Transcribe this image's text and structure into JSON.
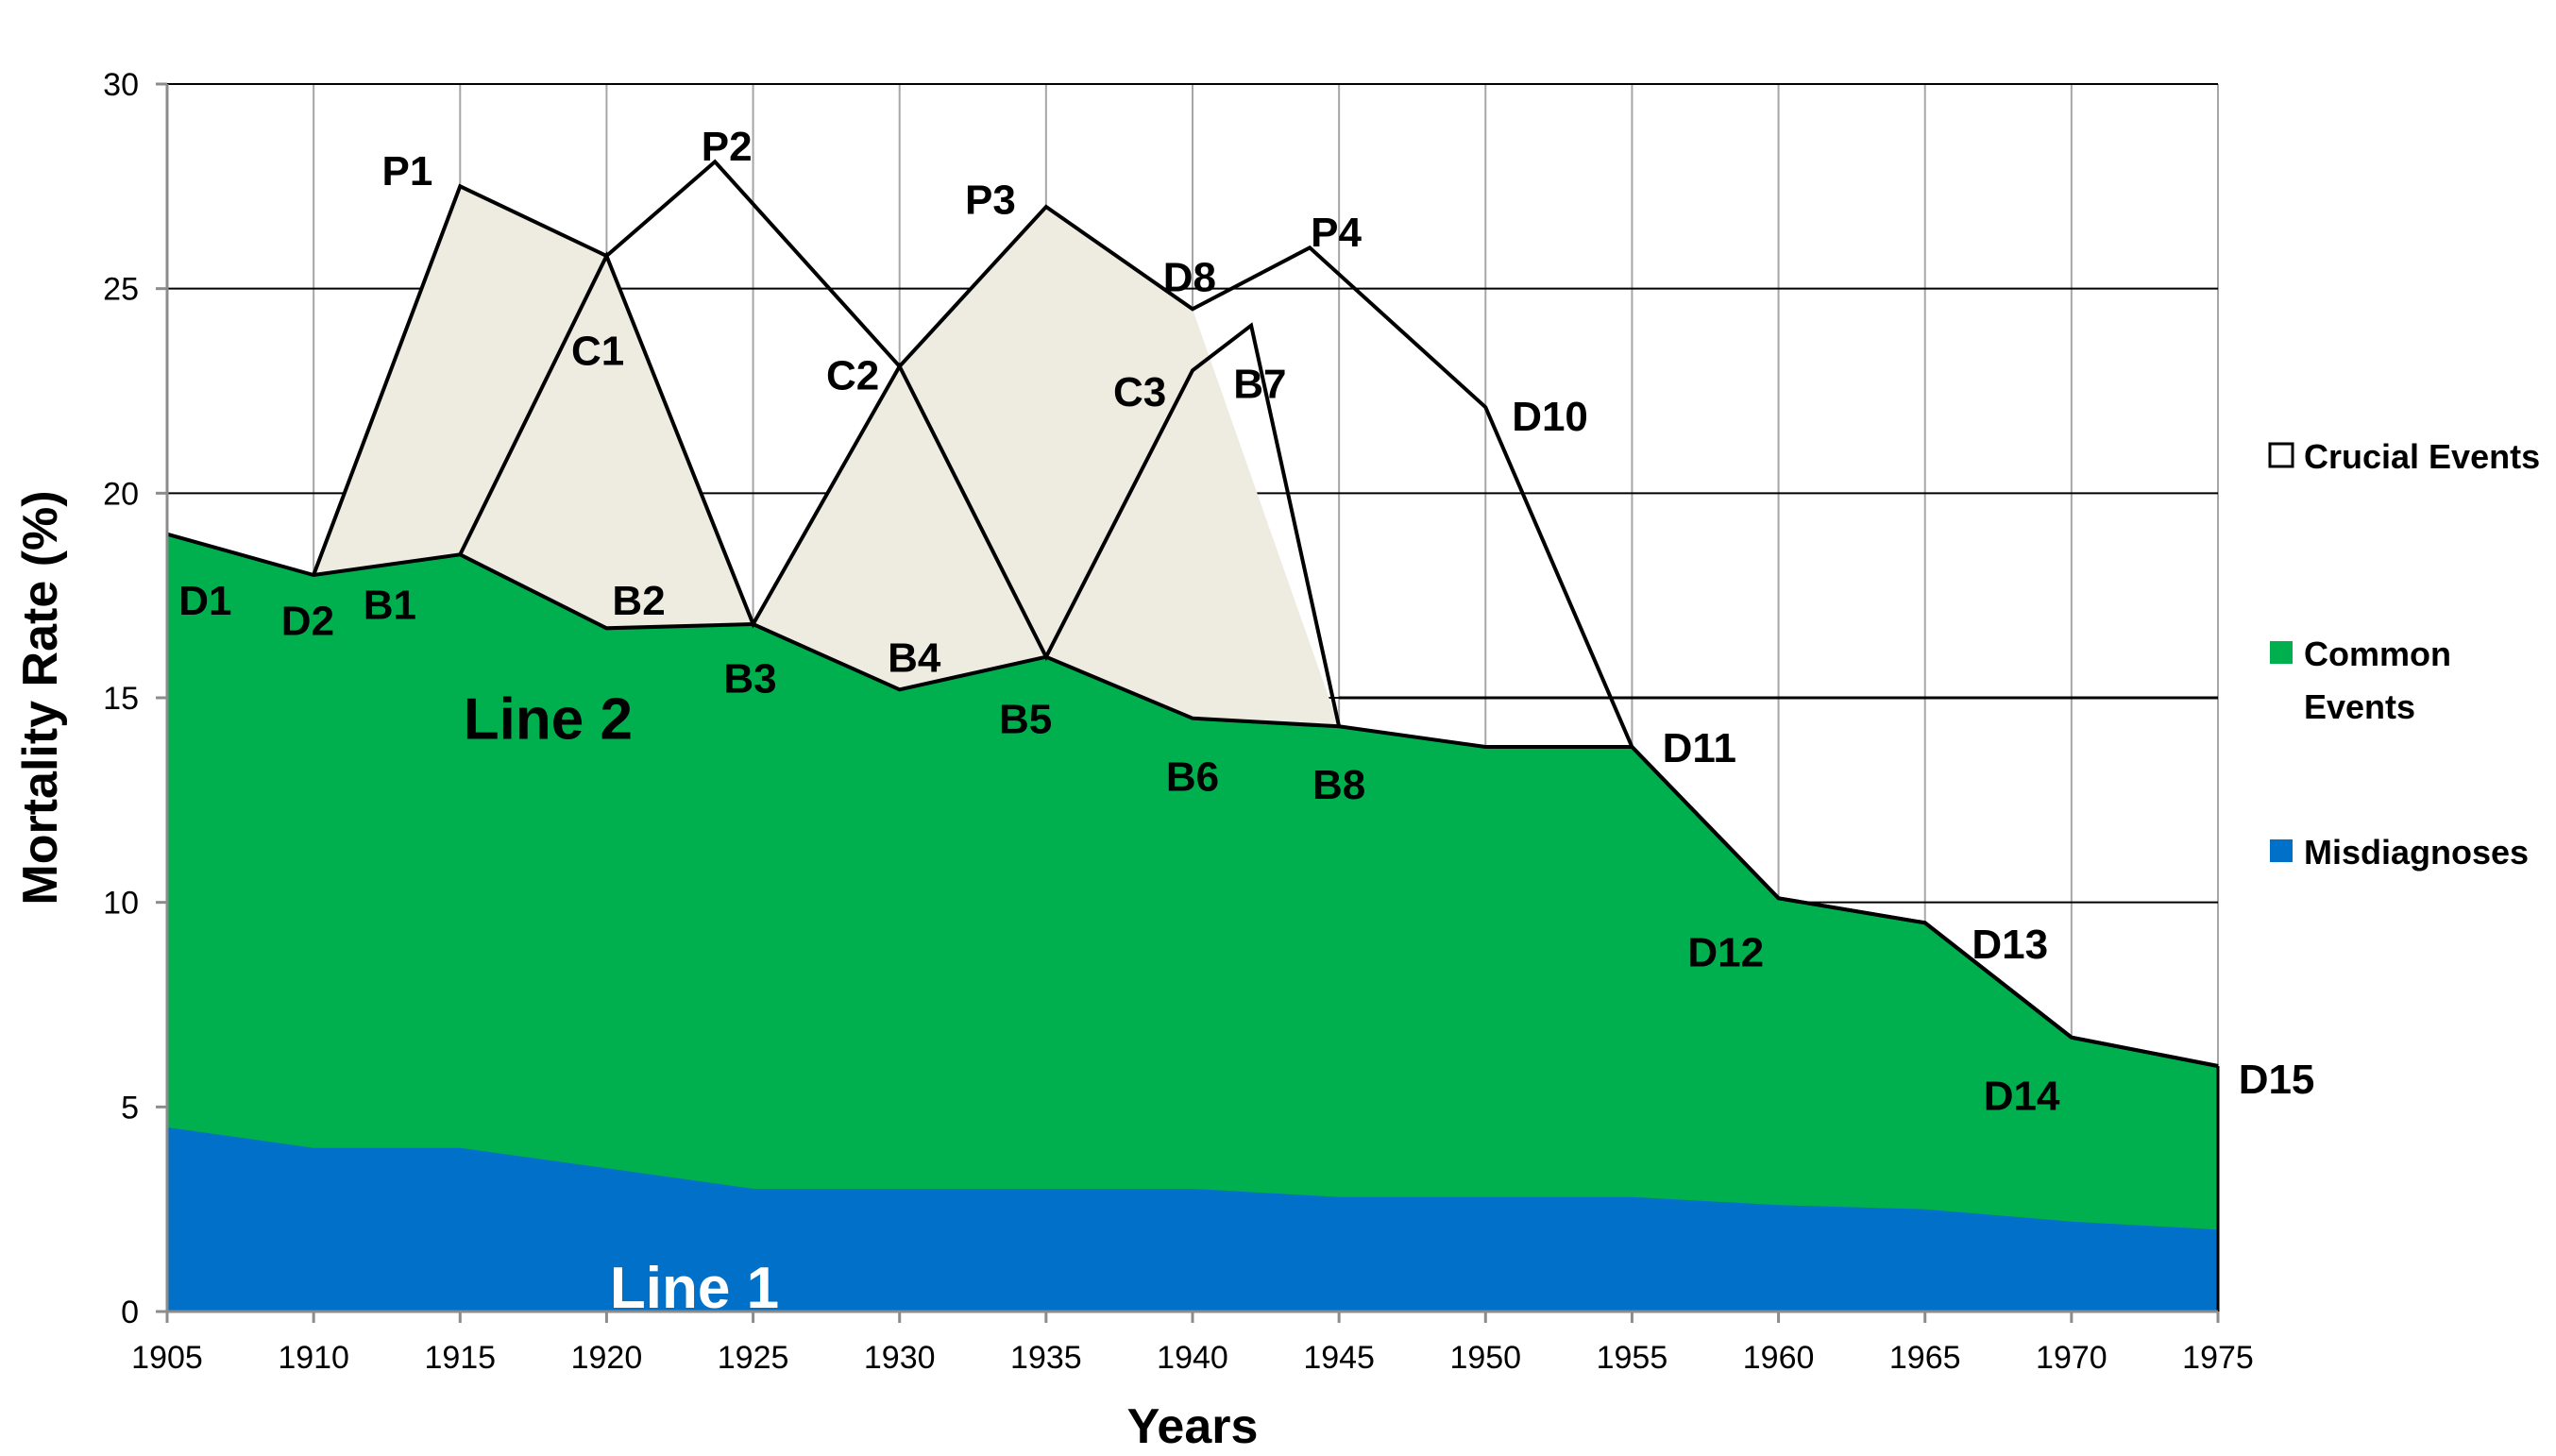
{
  "chart_data": {
    "type": "area",
    "title": "",
    "xlabel": "Years",
    "ylabel": "Mortality Rate (%)",
    "xlim": [
      1905,
      1975
    ],
    "ylim": [
      0,
      30
    ],
    "x_ticks": [
      1905,
      1910,
      1915,
      1920,
      1925,
      1930,
      1935,
      1940,
      1945,
      1950,
      1955,
      1960,
      1965,
      1970,
      1975
    ],
    "y_ticks": [
      0,
      5,
      10,
      15,
      20,
      25,
      30
    ],
    "grid": true,
    "legend": {
      "position": "right",
      "entries": [
        {
          "label": "Crucial Events",
          "color": "#ffffff"
        },
        {
          "label": "Common Events",
          "color": "#00b04f"
        },
        {
          "label": "Misdiagnoses",
          "color": "#0070c8"
        }
      ]
    },
    "series": [
      {
        "name": "Misdiagnoses",
        "color": "#0070c8",
        "points": [
          [
            1905,
            4.5
          ],
          [
            1910,
            4.0
          ],
          [
            1915,
            4.0
          ],
          [
            1920,
            3.5
          ],
          [
            1925,
            3.0
          ],
          [
            1930,
            3.0
          ],
          [
            1935,
            3.0
          ],
          [
            1940,
            3.0
          ],
          [
            1945,
            2.8
          ],
          [
            1950,
            2.8
          ],
          [
            1955,
            2.8
          ],
          [
            1960,
            2.6
          ],
          [
            1965,
            2.5
          ],
          [
            1970,
            2.2
          ],
          [
            1975,
            2.0
          ]
        ]
      },
      {
        "name": "Common Events",
        "color": "#00b04f",
        "points": [
          [
            1905,
            19.0
          ],
          [
            1910,
            18.0
          ],
          [
            1915,
            18.5
          ],
          [
            1920,
            16.7
          ],
          [
            1925,
            16.8
          ],
          [
            1930,
            15.2
          ],
          [
            1935,
            16.0
          ],
          [
            1940,
            14.5
          ],
          [
            1945,
            14.3
          ],
          [
            1950,
            13.8
          ],
          [
            1955,
            13.8
          ],
          [
            1960,
            10.1
          ],
          [
            1965,
            9.5
          ],
          [
            1970,
            6.7
          ],
          [
            1975,
            6.0
          ]
        ]
      },
      {
        "name": "Crucial Events",
        "color": "#eeece1",
        "regions": [
          [
            [
              1910,
              18.0
            ],
            [
              1915,
              27.5
            ],
            [
              1920,
              25.8
            ],
            [
              1925,
              16.8
            ],
            [
              1920,
              16.7
            ],
            [
              1915,
              18.5
            ]
          ],
          [
            [
              1925,
              16.8
            ],
            [
              1930,
              23.1
            ],
            [
              1935,
              16.0
            ],
            [
              1930,
              15.2
            ]
          ],
          [
            [
              1930,
              23.1
            ],
            [
              1935,
              27.0
            ],
            [
              1940,
              24.5
            ],
            [
              1945,
              14.3
            ],
            [
              1940,
              14.5
            ],
            [
              1935,
              16.0
            ]
          ]
        ]
      }
    ],
    "outline": {
      "upper": [
        [
          1910,
          18.0
        ],
        [
          1915,
          27.5
        ],
        [
          1920,
          25.8
        ],
        [
          1923.7,
          28.1
        ],
        [
          1930,
          23.1
        ],
        [
          1935,
          27.0
        ],
        [
          1940,
          24.5
        ],
        [
          1944,
          26.0
        ],
        [
          1950,
          22.1
        ],
        [
          1955,
          13.8
        ]
      ],
      "inner": [
        [
          1915,
          18.5
        ],
        [
          1920,
          25.8
        ],
        [
          1925,
          16.8
        ],
        [
          1930,
          23.1
        ],
        [
          1935,
          16.0
        ],
        [
          1940,
          23.0
        ],
        [
          1942,
          24.1
        ],
        [
          1945,
          14.3
        ]
      ],
      "crucial_plateau": [
        [
          1945,
          15.0
        ],
        [
          1975,
          15.0
        ]
      ],
      "tail": [
        [
          1955,
          13.8
        ],
        [
          1960,
          10.1
        ],
        [
          1965,
          9.5
        ],
        [
          1970,
          6.7
        ],
        [
          1975,
          6.0
        ]
      ]
    },
    "point_labels": [
      {
        "text": "D1",
        "x": 1906.3,
        "y": 17.4
      },
      {
        "text": "D2",
        "x": 1909.8,
        "y": 16.9
      },
      {
        "text": "B1",
        "x": 1912.6,
        "y": 17.3
      },
      {
        "text": "P1",
        "x": 1913.2,
        "y": 27.9
      },
      {
        "text": "C1",
        "x": 1919.7,
        "y": 23.5
      },
      {
        "text": "B2",
        "x": 1921.1,
        "y": 17.4
      },
      {
        "text": "P2",
        "x": 1924.1,
        "y": 28.5
      },
      {
        "text": "B3",
        "x": 1924.9,
        "y": 15.5
      },
      {
        "text": "C2",
        "x": 1928.4,
        "y": 22.9
      },
      {
        "text": "B4",
        "x": 1930.5,
        "y": 16.0
      },
      {
        "text": "P3",
        "x": 1933.1,
        "y": 27.2
      },
      {
        "text": "B5",
        "x": 1934.3,
        "y": 14.5
      },
      {
        "text": "C3",
        "x": 1938.2,
        "y": 22.5
      },
      {
        "text": "D8",
        "x": 1939.9,
        "y": 25.3
      },
      {
        "text": "B6",
        "x": 1940.0,
        "y": 13.1
      },
      {
        "text": "B7",
        "x": 1942.3,
        "y": 22.7
      },
      {
        "text": "P4",
        "x": 1944.9,
        "y": 26.4
      },
      {
        "text": "B8",
        "x": 1945.0,
        "y": 12.9
      },
      {
        "text": "D10",
        "x": 1952.2,
        "y": 21.9
      },
      {
        "text": "D11",
        "x": 1957.3,
        "y": 13.8
      },
      {
        "text": "D12",
        "x": 1958.2,
        "y": 8.8
      },
      {
        "text": "D13",
        "x": 1967.9,
        "y": 9.0
      },
      {
        "text": "D14",
        "x": 1968.3,
        "y": 5.3
      },
      {
        "text": "D15",
        "x": 1977.0,
        "y": 5.7
      }
    ],
    "line_labels": [
      {
        "text": "Line 2",
        "x": 1918.0,
        "y": 14.5,
        "color": "#000000"
      },
      {
        "text": "Line 1",
        "x": 1923.0,
        "y": 0.6,
        "color": "#ffffff"
      }
    ]
  }
}
